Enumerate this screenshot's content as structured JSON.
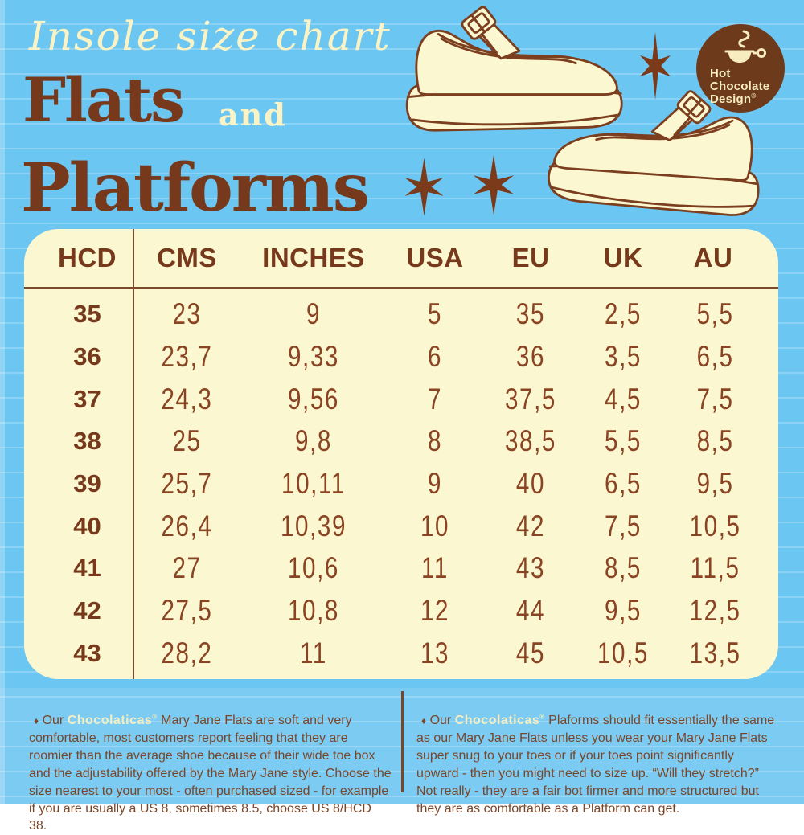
{
  "colors": {
    "background_blue": "#6CC6F2",
    "cream": "#FBF7D0",
    "brown_dark": "#76391B",
    "brown_data": "#8B4423",
    "footer_brown": "#7A4629",
    "logo_brown": "#6E3A1C"
  },
  "header": {
    "script_title": "Insole size chart",
    "flats": "Flats",
    "and": "and",
    "platforms": "Platforms"
  },
  "logo": {
    "line1": "Hot",
    "line2": "Chocolate",
    "line3": "Design",
    "registered": "®"
  },
  "icons": {
    "cup": "hot-chocolate-cup-icon",
    "star": "sparkle-star-icon",
    "shoe": "platform-mary-jane-shoe",
    "bullet": "diamond-bullet-icon"
  },
  "table": {
    "headers": [
      "HCD",
      "CMS",
      "INCHES",
      "USA",
      "EU",
      "UK",
      "AU"
    ],
    "rows": [
      [
        "35",
        "23",
        "9",
        "5",
        "35",
        "2,5",
        "5,5"
      ],
      [
        "36",
        "23,7",
        "9,33",
        "6",
        "36",
        "3,5",
        "6,5"
      ],
      [
        "37",
        "24,3",
        "9,56",
        "7",
        "37,5",
        "4,5",
        "7,5"
      ],
      [
        "38",
        "25",
        "9,8",
        "8",
        "38,5",
        "5,5",
        "8,5"
      ],
      [
        "39",
        "25,7",
        "10,11",
        "9",
        "40",
        "6,5",
        "9,5"
      ],
      [
        "40",
        "26,4",
        "10,39",
        "10",
        "42",
        "7,5",
        "10,5"
      ],
      [
        "41",
        "27",
        "10,6",
        "11",
        "43",
        "8,5",
        "11,5"
      ],
      [
        "42",
        "27,5",
        "10,8",
        "12",
        "44",
        "9,5",
        "12,5"
      ],
      [
        "43",
        "28,2",
        "11",
        "13",
        "45",
        "10,5",
        "13,5"
      ]
    ]
  },
  "footnotes": {
    "left": {
      "bullet": "♦",
      "prefix": "Our",
      "brand": "Chocolaticas",
      "reg": "®",
      "text": " Mary Jane Flats are soft and very comfortable, most customers report feeling that they are roomier than the average shoe because of their wide toe box and the adjustability offered by the Mary Jane style. Choose the size nearest to your most - often purchased sized - for example if you are usually a US 8, sometimes 8.5, choose US 8/HCD 38."
    },
    "right": {
      "bullet": "♦",
      "prefix": "Our",
      "brand": "Chocolaticas",
      "reg": "®",
      "text": " Plaforms should fit essentially the same as our Mary Jane Flats unless you wear your Mary Jane Flats super snug to your toes or if your toes point significantly upward - then you might need to size  up. “Will they stretch?” Not really - they are a fair bot firmer and more structured but they are as comfortable as a Platform can get."
    }
  }
}
